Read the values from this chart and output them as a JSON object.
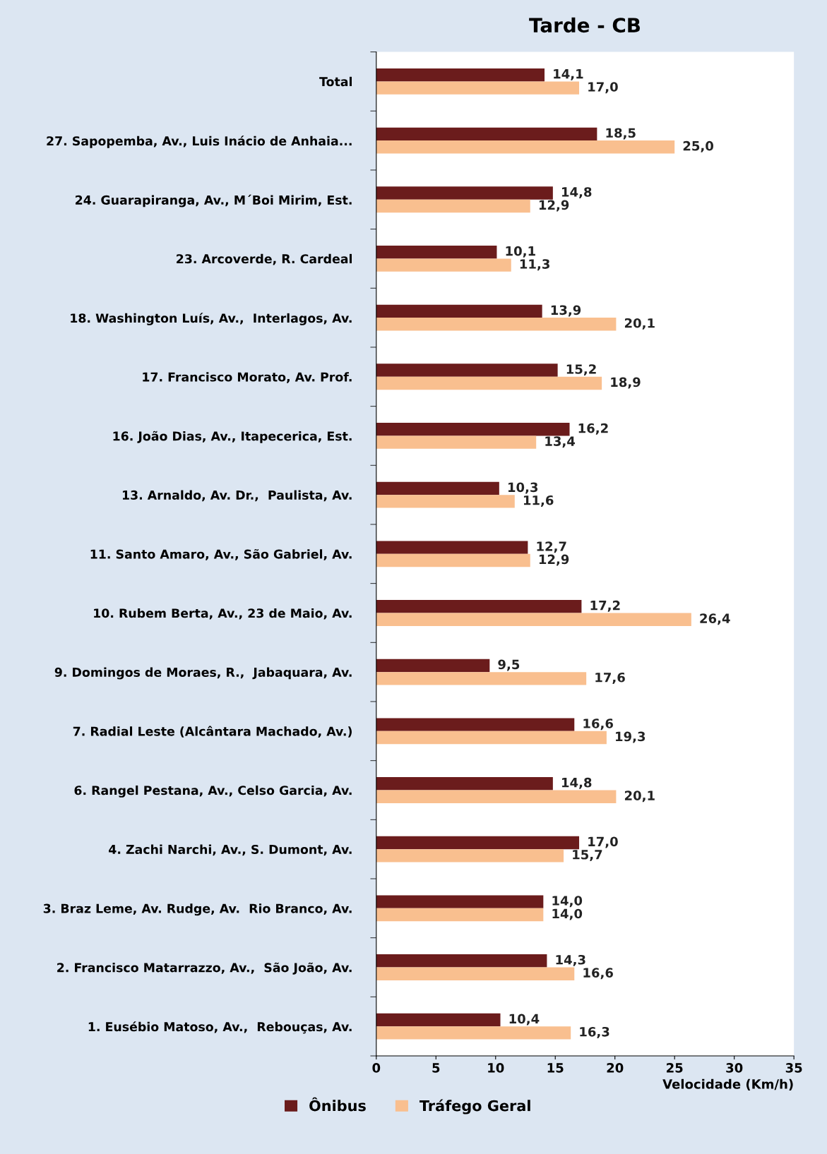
{
  "chart_data": {
    "type": "bar",
    "orientation": "horizontal",
    "title": "Tarde - CB",
    "xlabel": "Velocidade (Km/h)",
    "categories": [
      "Total",
      "27. Sapopemba, Av., Luis Inácio de Anhaia...",
      "24. Guarapiranga, Av., M´Boi Mirim, Est.",
      "23. Arcoverde, R. Cardeal",
      "18. Washington Luís, Av.,  Interlagos, Av.",
      "17. Francisco Morato, Av. Prof.",
      "16. João Dias, Av., Itapecerica, Est.",
      "13. Arnaldo, Av. Dr.,  Paulista, Av.",
      "11. Santo Amaro, Av., São Gabriel, Av.",
      "10. Rubem Berta, Av., 23 de Maio, Av.",
      "9. Domingos de Moraes, R.,  Jabaquara, Av.",
      "7. Radial Leste (Alcântara Machado, Av.)",
      "6. Rangel Pestana, Av., Celso Garcia, Av.",
      "4. Zachi Narchi, Av., S. Dumont, Av.",
      "3. Braz Leme, Av. Rudge, Av.  Rio Branco, Av.",
      "2. Francisco Matarrazzo, Av.,  São João, Av.",
      "1. Eusébio Matoso, Av.,  Rebouças, Av."
    ],
    "series": [
      {
        "name": "Ônibus",
        "color": "#6b1c1c",
        "values": [
          14.1,
          18.5,
          14.8,
          10.1,
          13.9,
          15.2,
          16.2,
          10.3,
          12.7,
          17.2,
          9.5,
          16.6,
          14.8,
          17.0,
          14.0,
          14.3,
          10.4
        ],
        "value_labels": [
          "14,1",
          "18,5",
          "14,8",
          "10,1",
          "13,9",
          "15,2",
          "16,2",
          "10,3",
          "12,7",
          "17,2",
          "9,5",
          "16,6",
          "14,8",
          "17,0",
          "14,0",
          "14,3",
          "10,4"
        ]
      },
      {
        "name": "Tráfego Geral",
        "color": "#f9bf8f",
        "values": [
          17.0,
          25.0,
          12.9,
          11.3,
          20.1,
          18.9,
          13.4,
          11.6,
          12.9,
          26.4,
          17.6,
          19.3,
          20.1,
          15.7,
          14.0,
          16.6,
          16.3
        ],
        "value_labels": [
          "17,0",
          "25,0",
          "12,9",
          "11,3",
          "20,1",
          "18,9",
          "13,4",
          "11,6",
          "12,9",
          "26,4",
          "17,6",
          "19,3",
          "20,1",
          "15,7",
          "14,0",
          "16,6",
          "16,3"
        ]
      }
    ],
    "xlim": [
      0,
      35
    ],
    "xticks": [
      0,
      5,
      10,
      15,
      20,
      25,
      30,
      35
    ],
    "grid": false,
    "legend": "bottom"
  }
}
